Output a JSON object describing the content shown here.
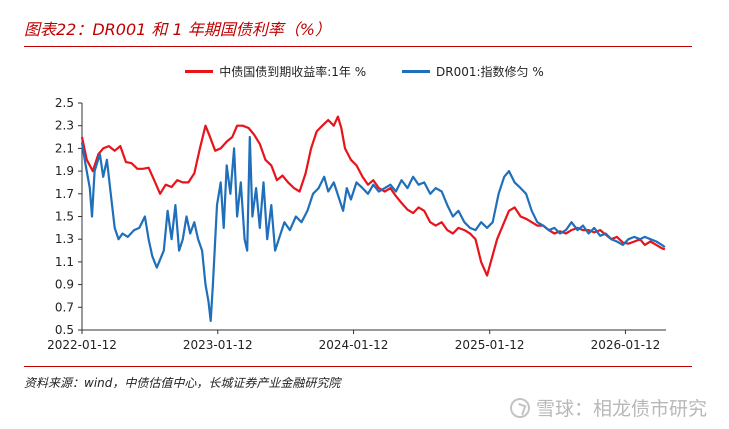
{
  "header": {
    "title": "图表22：DR001 和 1 年期国债利率（%）"
  },
  "footer": {
    "source": "资料来源：wind，中债估值中心，长城证券产业金融研究院",
    "watermark": "雪球：相龙债市研究"
  },
  "chart_data": {
    "type": "line",
    "title": "图表22：DR001 和 1 年期国债利率（%）",
    "xlabel": "",
    "ylabel": "",
    "ylim": [
      0.5,
      2.5
    ],
    "yticks": [
      0.5,
      0.7,
      0.9,
      1.1,
      1.3,
      1.5,
      1.7,
      1.9,
      2.1,
      2.3,
      2.5
    ],
    "xlim": [
      "2022-01-12",
      "2026-05-01"
    ],
    "xticks": [
      "2022-01-12",
      "2023-01-12",
      "2024-01-12",
      "2025-01-12",
      "2026-01-12"
    ],
    "grid": false,
    "legend_position": "top-center",
    "series": [
      {
        "name": "中债国债到期收益率:1年 %",
        "color": "#e8141b",
        "points": [
          [
            "2022-01-12",
            2.2
          ],
          [
            "2022-01-25",
            2.0
          ],
          [
            "2022-02-10",
            1.9
          ],
          [
            "2022-02-25",
            2.05
          ],
          [
            "2022-03-10",
            2.1
          ],
          [
            "2022-03-25",
            2.12
          ],
          [
            "2022-04-10",
            2.08
          ],
          [
            "2022-04-25",
            2.12
          ],
          [
            "2022-05-10",
            1.98
          ],
          [
            "2022-05-25",
            1.97
          ],
          [
            "2022-06-10",
            1.92
          ],
          [
            "2022-06-25",
            1.92
          ],
          [
            "2022-07-10",
            1.93
          ],
          [
            "2022-07-25",
            1.82
          ],
          [
            "2022-08-10",
            1.7
          ],
          [
            "2022-08-25",
            1.78
          ],
          [
            "2022-09-10",
            1.76
          ],
          [
            "2022-09-25",
            1.82
          ],
          [
            "2022-10-10",
            1.8
          ],
          [
            "2022-10-25",
            1.8
          ],
          [
            "2022-11-10",
            1.88
          ],
          [
            "2022-11-25",
            2.1
          ],
          [
            "2022-12-10",
            2.3
          ],
          [
            "2022-12-20",
            2.22
          ],
          [
            "2023-01-05",
            2.08
          ],
          [
            "2023-01-20",
            2.1
          ],
          [
            "2023-02-05",
            2.16
          ],
          [
            "2023-02-20",
            2.2
          ],
          [
            "2023-03-05",
            2.3
          ],
          [
            "2023-03-20",
            2.3
          ],
          [
            "2023-04-05",
            2.28
          ],
          [
            "2023-04-20",
            2.22
          ],
          [
            "2023-05-05",
            2.14
          ],
          [
            "2023-05-20",
            2.0
          ],
          [
            "2023-06-05",
            1.95
          ],
          [
            "2023-06-20",
            1.82
          ],
          [
            "2023-07-05",
            1.86
          ],
          [
            "2023-07-20",
            1.8
          ],
          [
            "2023-08-05",
            1.75
          ],
          [
            "2023-08-20",
            1.72
          ],
          [
            "2023-09-05",
            1.88
          ],
          [
            "2023-09-20",
            2.1
          ],
          [
            "2023-10-05",
            2.25
          ],
          [
            "2023-10-20",
            2.3
          ],
          [
            "2023-11-05",
            2.35
          ],
          [
            "2023-11-20",
            2.3
          ],
          [
            "2023-12-01",
            2.38
          ],
          [
            "2023-12-10",
            2.28
          ],
          [
            "2023-12-20",
            2.1
          ],
          [
            "2024-01-05",
            2.0
          ],
          [
            "2024-01-20",
            1.95
          ],
          [
            "2024-02-05",
            1.85
          ],
          [
            "2024-02-20",
            1.78
          ],
          [
            "2024-03-05",
            1.82
          ],
          [
            "2024-03-20",
            1.75
          ],
          [
            "2024-04-05",
            1.72
          ],
          [
            "2024-04-20",
            1.75
          ],
          [
            "2024-05-05",
            1.68
          ],
          [
            "2024-05-20",
            1.62
          ],
          [
            "2024-06-05",
            1.56
          ],
          [
            "2024-06-20",
            1.53
          ],
          [
            "2024-07-05",
            1.58
          ],
          [
            "2024-07-20",
            1.55
          ],
          [
            "2024-08-05",
            1.45
          ],
          [
            "2024-08-20",
            1.42
          ],
          [
            "2024-09-05",
            1.45
          ],
          [
            "2024-09-20",
            1.38
          ],
          [
            "2024-10-05",
            1.35
          ],
          [
            "2024-10-20",
            1.4
          ],
          [
            "2024-11-05",
            1.38
          ],
          [
            "2024-11-20",
            1.35
          ],
          [
            "2024-12-05",
            1.3
          ],
          [
            "2024-12-20",
            1.1
          ],
          [
            "2025-01-05",
            0.98
          ],
          [
            "2025-01-15",
            1.1
          ],
          [
            "2025-02-01",
            1.3
          ],
          [
            "2025-02-20",
            1.45
          ],
          [
            "2025-03-05",
            1.55
          ],
          [
            "2025-03-20",
            1.58
          ],
          [
            "2025-04-05",
            1.5
          ],
          [
            "2025-04-20",
            1.48
          ],
          [
            "2025-05-05",
            1.45
          ],
          [
            "2025-05-20",
            1.42
          ],
          [
            "2025-06-05",
            1.42
          ],
          [
            "2025-06-20",
            1.38
          ],
          [
            "2025-07-05",
            1.35
          ],
          [
            "2025-07-20",
            1.37
          ],
          [
            "2025-08-05",
            1.35
          ],
          [
            "2025-08-20",
            1.38
          ],
          [
            "2025-09-05",
            1.4
          ],
          [
            "2025-09-20",
            1.38
          ],
          [
            "2025-10-05",
            1.38
          ],
          [
            "2025-10-20",
            1.36
          ],
          [
            "2025-11-05",
            1.38
          ],
          [
            "2025-11-20",
            1.34
          ],
          [
            "2025-12-05",
            1.3
          ],
          [
            "2025-12-20",
            1.32
          ],
          [
            "2026-01-05",
            1.27
          ],
          [
            "2026-01-20",
            1.26
          ],
          [
            "2026-02-05",
            1.28
          ],
          [
            "2026-02-20",
            1.3
          ],
          [
            "2026-03-05",
            1.25
          ],
          [
            "2026-03-20",
            1.28
          ],
          [
            "2026-04-05",
            1.25
          ],
          [
            "2026-04-20",
            1.22
          ],
          [
            "2026-04-28",
            1.21
          ]
        ]
      },
      {
        "name": "DR001:指数修匀 %",
        "color": "#1f6fba",
        "points": [
          [
            "2022-01-12",
            2.15
          ],
          [
            "2022-01-22",
            1.95
          ],
          [
            "2022-02-02",
            1.75
          ],
          [
            "2022-02-08",
            1.5
          ],
          [
            "2022-02-15",
            1.9
          ],
          [
            "2022-03-01",
            2.05
          ],
          [
            "2022-03-10",
            1.85
          ],
          [
            "2022-03-20",
            2.0
          ],
          [
            "2022-04-01",
            1.65
          ],
          [
            "2022-04-10",
            1.4
          ],
          [
            "2022-04-20",
            1.3
          ],
          [
            "2022-05-01",
            1.35
          ],
          [
            "2022-05-15",
            1.32
          ],
          [
            "2022-06-01",
            1.38
          ],
          [
            "2022-06-15",
            1.4
          ],
          [
            "2022-06-30",
            1.5
          ],
          [
            "2022-07-10",
            1.3
          ],
          [
            "2022-07-20",
            1.15
          ],
          [
            "2022-08-01",
            1.05
          ],
          [
            "2022-08-10",
            1.12
          ],
          [
            "2022-08-20",
            1.2
          ],
          [
            "2022-08-30",
            1.55
          ],
          [
            "2022-09-10",
            1.3
          ],
          [
            "2022-09-20",
            1.6
          ],
          [
            "2022-09-30",
            1.2
          ],
          [
            "2022-10-10",
            1.3
          ],
          [
            "2022-10-20",
            1.5
          ],
          [
            "2022-10-30",
            1.35
          ],
          [
            "2022-11-10",
            1.45
          ],
          [
            "2022-11-20",
            1.3
          ],
          [
            "2022-12-01",
            1.2
          ],
          [
            "2022-12-10",
            0.9
          ],
          [
            "2022-12-18",
            0.75
          ],
          [
            "2022-12-24",
            0.58
          ],
          [
            "2022-12-30",
            0.9
          ],
          [
            "2023-01-10",
            1.6
          ],
          [
            "2023-01-20",
            1.8
          ],
          [
            "2023-01-28",
            1.4
          ],
          [
            "2023-02-05",
            1.95
          ],
          [
            "2023-02-15",
            1.7
          ],
          [
            "2023-02-25",
            2.1
          ],
          [
            "2023-03-05",
            1.5
          ],
          [
            "2023-03-15",
            1.8
          ],
          [
            "2023-03-25",
            1.3
          ],
          [
            "2023-04-01",
            1.2
          ],
          [
            "2023-04-08",
            2.2
          ],
          [
            "2023-04-15",
            1.5
          ],
          [
            "2023-04-25",
            1.75
          ],
          [
            "2023-05-05",
            1.4
          ],
          [
            "2023-05-15",
            1.8
          ],
          [
            "2023-05-25",
            1.3
          ],
          [
            "2023-06-05",
            1.6
          ],
          [
            "2023-06-15",
            1.2
          ],
          [
            "2023-06-25",
            1.3
          ],
          [
            "2023-07-10",
            1.45
          ],
          [
            "2023-07-25",
            1.38
          ],
          [
            "2023-08-10",
            1.5
          ],
          [
            "2023-08-25",
            1.45
          ],
          [
            "2023-09-10",
            1.55
          ],
          [
            "2023-09-25",
            1.7
          ],
          [
            "2023-10-10",
            1.75
          ],
          [
            "2023-10-25",
            1.85
          ],
          [
            "2023-11-05",
            1.72
          ],
          [
            "2023-11-20",
            1.8
          ],
          [
            "2023-12-05",
            1.65
          ],
          [
            "2023-12-15",
            1.55
          ],
          [
            "2023-12-25",
            1.75
          ],
          [
            "2024-01-05",
            1.65
          ],
          [
            "2024-01-20",
            1.8
          ],
          [
            "2024-02-05",
            1.75
          ],
          [
            "2024-02-20",
            1.7
          ],
          [
            "2024-03-05",
            1.78
          ],
          [
            "2024-03-20",
            1.72
          ],
          [
            "2024-04-05",
            1.75
          ],
          [
            "2024-04-20",
            1.78
          ],
          [
            "2024-05-05",
            1.72
          ],
          [
            "2024-05-20",
            1.82
          ],
          [
            "2024-06-05",
            1.75
          ],
          [
            "2024-06-20",
            1.85
          ],
          [
            "2024-07-05",
            1.78
          ],
          [
            "2024-07-20",
            1.8
          ],
          [
            "2024-08-05",
            1.7
          ],
          [
            "2024-08-20",
            1.75
          ],
          [
            "2024-09-05",
            1.72
          ],
          [
            "2024-09-20",
            1.6
          ],
          [
            "2024-10-05",
            1.5
          ],
          [
            "2024-10-20",
            1.55
          ],
          [
            "2024-11-05",
            1.45
          ],
          [
            "2024-11-20",
            1.4
          ],
          [
            "2024-12-05",
            1.38
          ],
          [
            "2024-12-20",
            1.45
          ],
          [
            "2025-01-05",
            1.4
          ],
          [
            "2025-01-20",
            1.45
          ],
          [
            "2025-02-05",
            1.7
          ],
          [
            "2025-02-20",
            1.85
          ],
          [
            "2025-03-05",
            1.9
          ],
          [
            "2025-03-20",
            1.8
          ],
          [
            "2025-04-05",
            1.75
          ],
          [
            "2025-04-20",
            1.7
          ],
          [
            "2025-05-05",
            1.55
          ],
          [
            "2025-05-20",
            1.45
          ],
          [
            "2025-06-05",
            1.42
          ],
          [
            "2025-06-20",
            1.38
          ],
          [
            "2025-07-05",
            1.4
          ],
          [
            "2025-07-20",
            1.35
          ],
          [
            "2025-08-05",
            1.38
          ],
          [
            "2025-08-20",
            1.45
          ],
          [
            "2025-09-05",
            1.38
          ],
          [
            "2025-09-20",
            1.42
          ],
          [
            "2025-10-05",
            1.35
          ],
          [
            "2025-10-20",
            1.4
          ],
          [
            "2025-11-05",
            1.33
          ],
          [
            "2025-11-20",
            1.35
          ],
          [
            "2025-12-05",
            1.3
          ],
          [
            "2025-12-20",
            1.28
          ],
          [
            "2026-01-05",
            1.25
          ],
          [
            "2026-01-20",
            1.3
          ],
          [
            "2026-02-05",
            1.32
          ],
          [
            "2026-02-20",
            1.3
          ],
          [
            "2026-03-05",
            1.32
          ],
          [
            "2026-03-20",
            1.3
          ],
          [
            "2026-04-05",
            1.28
          ],
          [
            "2026-04-20",
            1.25
          ],
          [
            "2026-04-28",
            1.23
          ]
        ]
      }
    ]
  }
}
